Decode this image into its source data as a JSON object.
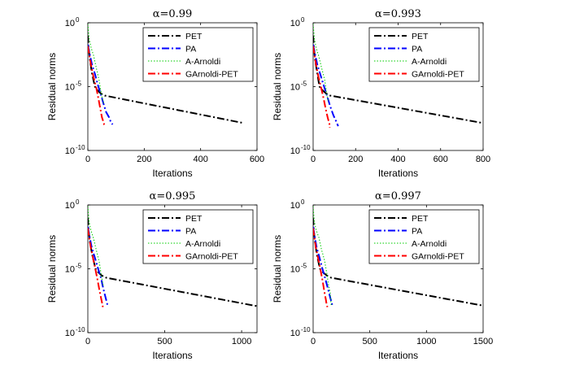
{
  "chart_data": [
    {
      "type": "line",
      "title": "α=0.99",
      "xlabel": "Iterations",
      "ylabel": "Residual norms",
      "yscale": "log",
      "xlim": [
        0,
        600
      ],
      "xticks": [
        0,
        200,
        400,
        600
      ],
      "xtick_labels": [
        "0",
        "200",
        "400",
        "600"
      ],
      "ylim": [
        1e-10,
        1
      ],
      "yticks": [
        {
          "base": "10",
          "exp": "0",
          "value": 1
        },
        {
          "base": "10",
          "exp": "-5",
          "value": 1e-05
        },
        {
          "base": "10",
          "exp": "-10",
          "value": 1e-10
        }
      ],
      "legend": {
        "position": "top-right"
      },
      "series": [
        {
          "name": "PET",
          "color": "#000000",
          "dash": "dashdot",
          "x": [
            0,
            3,
            8,
            15,
            25,
            35,
            45,
            60,
            552
          ],
          "y": [
            0.1,
            0.01,
            0.001,
            0.0001,
            1e-05,
            5e-06,
            3e-06,
            2e-06,
            1.4e-08
          ]
        },
        {
          "name": "PA",
          "color": "#0000ff",
          "dash": "dashdot",
          "x": [
            0,
            6,
            15,
            25,
            35,
            45,
            55,
            65,
            75,
            82,
            88
          ],
          "y": [
            0.02,
            0.004,
            0.0005,
            0.0001,
            1.5e-05,
            3e-06,
            5e-07,
            1e-07,
            4e-08,
            1.6e-08,
            1.1e-08
          ]
        },
        {
          "name": "A-Arnoldi",
          "color": "#00cc00",
          "dash": "dotted",
          "x": [
            0,
            5,
            12,
            20,
            30,
            40,
            50,
            58
          ],
          "y": [
            0.8,
            0.05,
            0.01,
            0.003,
            0.0003,
            3e-05,
            1.5e-06,
            4e-07
          ]
        },
        {
          "name": "GArnoldi-PET",
          "color": "#ff0000",
          "dash": "dashdot",
          "x": [
            0,
            5,
            12,
            20,
            30,
            38,
            45,
            50,
            55,
            58,
            60
          ],
          "y": [
            0.015,
            0.003,
            0.0004,
            6e-05,
            8e-06,
            1e-06,
            1.5e-07,
            4e-08,
            1.8e-08,
            1.1e-08,
            1e-08
          ]
        }
      ]
    },
    {
      "type": "line",
      "title": "α=0.993",
      "xlabel": "Iterations",
      "ylabel": "Residual norms",
      "yscale": "log",
      "xlim": [
        0,
        800
      ],
      "xticks": [
        0,
        200,
        400,
        600,
        800
      ],
      "xtick_labels": [
        "0",
        "200",
        "400",
        "600",
        "800"
      ],
      "ylim": [
        1e-10,
        1
      ],
      "yticks": [
        {
          "base": "10",
          "exp": "0",
          "value": 1
        },
        {
          "base": "10",
          "exp": "-5",
          "value": 1e-05
        },
        {
          "base": "10",
          "exp": "-10",
          "value": 1e-10
        }
      ],
      "legend": {
        "position": "top-right"
      },
      "series": [
        {
          "name": "PET",
          "color": "#000000",
          "dash": "dashdot",
          "x": [
            0,
            4,
            10,
            20,
            30,
            45,
            60,
            80,
            800
          ],
          "y": [
            0.1,
            0.01,
            0.001,
            0.0001,
            1e-05,
            5e-06,
            3e-06,
            2e-06,
            1.4e-08
          ]
        },
        {
          "name": "PA",
          "color": "#0000ff",
          "dash": "dashdot",
          "x": [
            0,
            8,
            20,
            35,
            50,
            65,
            80,
            95,
            108,
            118
          ],
          "y": [
            0.02,
            0.004,
            0.0005,
            8e-05,
            1.2e-05,
            2e-06,
            3e-07,
            6e-08,
            2e-08,
            8e-09
          ]
        },
        {
          "name": "A-Arnoldi",
          "color": "#00cc00",
          "dash": "dotted",
          "x": [
            0,
            6,
            15,
            25,
            40,
            55,
            65,
            72
          ],
          "y": [
            0.8,
            0.05,
            0.01,
            0.003,
            0.0003,
            3e-05,
            2e-06,
            6e-07
          ]
        },
        {
          "name": "GArnoldi-PET",
          "color": "#ff0000",
          "dash": "dashdot",
          "x": [
            0,
            6,
            15,
            25,
            38,
            50,
            60,
            68,
            75,
            78,
            78
          ],
          "y": [
            0.015,
            0.003,
            0.0004,
            6e-05,
            8e-06,
            1e-06,
            1.5e-07,
            4e-08,
            1.5e-08,
            1e-08,
            6e-09
          ]
        }
      ]
    },
    {
      "type": "line",
      "title": "α=0.995",
      "xlabel": "Iterations",
      "ylabel": "Residual norms",
      "yscale": "log",
      "xlim": [
        0,
        1100
      ],
      "xticks": [
        0,
        500,
        1000
      ],
      "xtick_labels": [
        "0",
        "500",
        "1000"
      ],
      "ylim": [
        1e-10,
        1
      ],
      "yticks": [
        {
          "base": "10",
          "exp": "0",
          "value": 1
        },
        {
          "base": "10",
          "exp": "-5",
          "value": 1e-05
        },
        {
          "base": "10",
          "exp": "-10",
          "value": 1e-10
        }
      ],
      "legend": {
        "position": "top-right"
      },
      "series": [
        {
          "name": "PET",
          "color": "#000000",
          "dash": "dashdot",
          "x": [
            0,
            5,
            15,
            30,
            50,
            70,
            90,
            120,
            1100
          ],
          "y": [
            0.1,
            0.01,
            0.001,
            0.0001,
            1e-05,
            5e-06,
            3e-06,
            2e-06,
            1.2e-08
          ]
        },
        {
          "name": "PA",
          "color": "#0000ff",
          "dash": "dashdot",
          "x": [
            0,
            10,
            25,
            45,
            65,
            85,
            100,
            115,
            125,
            130
          ],
          "y": [
            0.02,
            0.004,
            0.0005,
            8e-05,
            1.2e-05,
            2e-06,
            3e-07,
            6e-08,
            2e-08,
            1.2e-08
          ]
        },
        {
          "name": "A-Arnoldi",
          "color": "#00cc00",
          "dash": "dotted",
          "x": [
            0,
            8,
            20,
            35,
            55,
            75,
            90,
            100
          ],
          "y": [
            0.8,
            0.05,
            0.01,
            0.003,
            0.0003,
            3e-05,
            2e-06,
            5e-07
          ]
        },
        {
          "name": "GArnoldi-PET",
          "color": "#ff0000",
          "dash": "dashdot",
          "x": [
            0,
            8,
            20,
            35,
            50,
            65,
            78,
            88,
            95,
            98
          ],
          "y": [
            0.015,
            0.003,
            0.0004,
            6e-05,
            8e-06,
            1e-06,
            1.5e-07,
            4e-08,
            1.5e-08,
            1e-08
          ]
        }
      ]
    },
    {
      "type": "line",
      "title": "α=0.997",
      "xlabel": "Iterations",
      "ylabel": "Residual norms",
      "yscale": "log",
      "xlim": [
        0,
        1500
      ],
      "xticks": [
        0,
        500,
        1000,
        1500
      ],
      "xtick_labels": [
        "0",
        "500",
        "1000",
        "1500"
      ],
      "ylim": [
        1e-10,
        1
      ],
      "yticks": [
        {
          "base": "10",
          "exp": "0",
          "value": 1
        },
        {
          "base": "10",
          "exp": "-5",
          "value": 1e-05
        },
        {
          "base": "10",
          "exp": "-10",
          "value": 1e-10
        }
      ],
      "legend": {
        "position": "top-right"
      },
      "series": [
        {
          "name": "PET",
          "color": "#000000",
          "dash": "dashdot",
          "x": [
            0,
            6,
            18,
            35,
            60,
            90,
            120,
            160,
            1500
          ],
          "y": [
            0.1,
            0.01,
            0.001,
            0.0001,
            1e-05,
            5e-06,
            3e-06,
            2e-06,
            1.3e-08
          ]
        },
        {
          "name": "PA",
          "color": "#0000ff",
          "dash": "dashdot",
          "x": [
            0,
            12,
            30,
            55,
            80,
            105,
            130,
            150,
            165,
            172
          ],
          "y": [
            0.02,
            0.004,
            0.0005,
            8e-05,
            1.2e-05,
            2e-06,
            3e-07,
            6e-08,
            2e-08,
            1e-08
          ]
        },
        {
          "name": "A-Arnoldi",
          "color": "#00cc00",
          "dash": "dotted",
          "x": [
            0,
            10,
            28,
            50,
            75,
            100,
            120,
            135,
            150,
            160
          ],
          "y": [
            0.8,
            0.05,
            0.01,
            0.003,
            0.0003,
            5e-05,
            5e-06,
            6e-07,
            1.5e-07,
            1.2e-08
          ]
        },
        {
          "name": "GArnoldi-PET",
          "color": "#ff0000",
          "dash": "dashdot",
          "x": [
            0,
            10,
            25,
            45,
            65,
            85,
            100,
            112,
            120,
            126
          ],
          "y": [
            0.015,
            0.003,
            0.0004,
            6e-05,
            8e-06,
            1e-06,
            1.5e-07,
            4e-08,
            1.5e-08,
            1e-08
          ]
        }
      ]
    }
  ]
}
